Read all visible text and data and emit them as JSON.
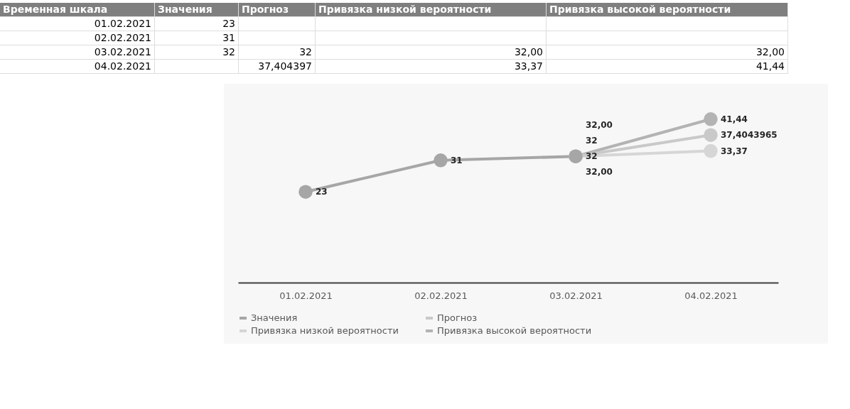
{
  "chart_data": {
    "type": "line",
    "categories": [
      "01.02.2021",
      "02.02.2021",
      "03.02.2021",
      "04.02.2021"
    ],
    "series": [
      {
        "name": "Значения",
        "color": "#a6a6a6",
        "values": [
          23,
          31,
          32,
          null
        ],
        "value_labels": [
          "23",
          "31",
          "32",
          null
        ]
      },
      {
        "name": "Прогноз",
        "color": "#c9c9c9",
        "values": [
          null,
          null,
          32,
          37.4043965
        ],
        "value_labels": [
          null,
          null,
          "32",
          "37,4043965"
        ]
      },
      {
        "name": "Привязка низкой вероятности",
        "color": "#d6d6d6",
        "values": [
          null,
          null,
          32,
          33.37
        ],
        "value_labels": [
          null,
          null,
          "32,00",
          "33,37"
        ]
      },
      {
        "name": "Привязка высокой вероятности",
        "color": "#b3b3b3",
        "values": [
          null,
          null,
          32,
          41.44
        ],
        "value_labels": [
          null,
          null,
          "32,00",
          "41,44"
        ]
      }
    ],
    "tick_labels": "x",
    "legend": "bottom",
    "marker": "circle",
    "line_style": "solid",
    "annotations": [
      "Временная шкала",
      "Значения",
      "Прогноз",
      "Привязка низкой вероятности",
      "Привязка высокой вероятности",
      "01.02.2021",
      "23",
      null,
      null,
      null,
      "02.02.2021",
      "31",
      null,
      null,
      null,
      "03.02.2021",
      "32",
      "32",
      "32,00",
      "32,00",
      "04.02.2021",
      null,
      "37,404397",
      "33,37",
      "41,44"
    ]
  }
}
